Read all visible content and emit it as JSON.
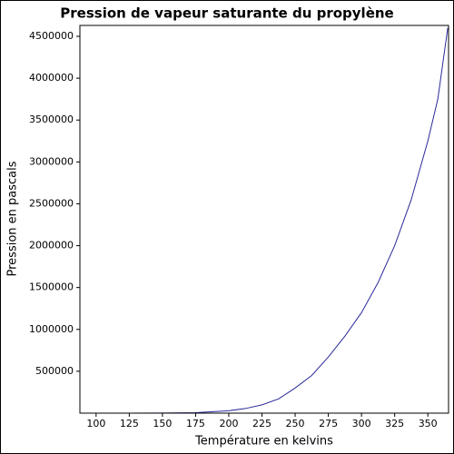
{
  "chart_data": {
    "type": "line",
    "title": "Pression de vapeur saturante du propylène",
    "x_label": "Température en kelvins",
    "y_label": "Pression en pascals",
    "x": [
      88,
      100,
      125,
      150,
      175,
      200,
      212.5,
      225,
      237.5,
      250,
      262.5,
      275,
      287.5,
      300,
      312.5,
      325,
      337.5,
      350,
      357.5,
      365
    ],
    "series": [
      {
        "name": "Pression de vapeur saturante",
        "color": "#2a2a9a",
        "values": [
          0,
          0,
          10,
          730,
          6000,
          29000,
          55000,
          99000,
          170000,
          300000,
          450000,
          670000,
          920000,
          1200000,
          1560000,
          2000000,
          2550000,
          3250000,
          3750000,
          4600000
        ]
      }
    ],
    "xlim": [
      87.8,
      365.6
    ],
    "ylim": [
      0,
      4630000
    ],
    "xticks": [
      100,
      125,
      150,
      175,
      200,
      225,
      250,
      275,
      300,
      325,
      350
    ],
    "yticks": [
      500000,
      1000000,
      1500000,
      2000000,
      2500000,
      3000000,
      3500000,
      4000000,
      4500000
    ]
  }
}
